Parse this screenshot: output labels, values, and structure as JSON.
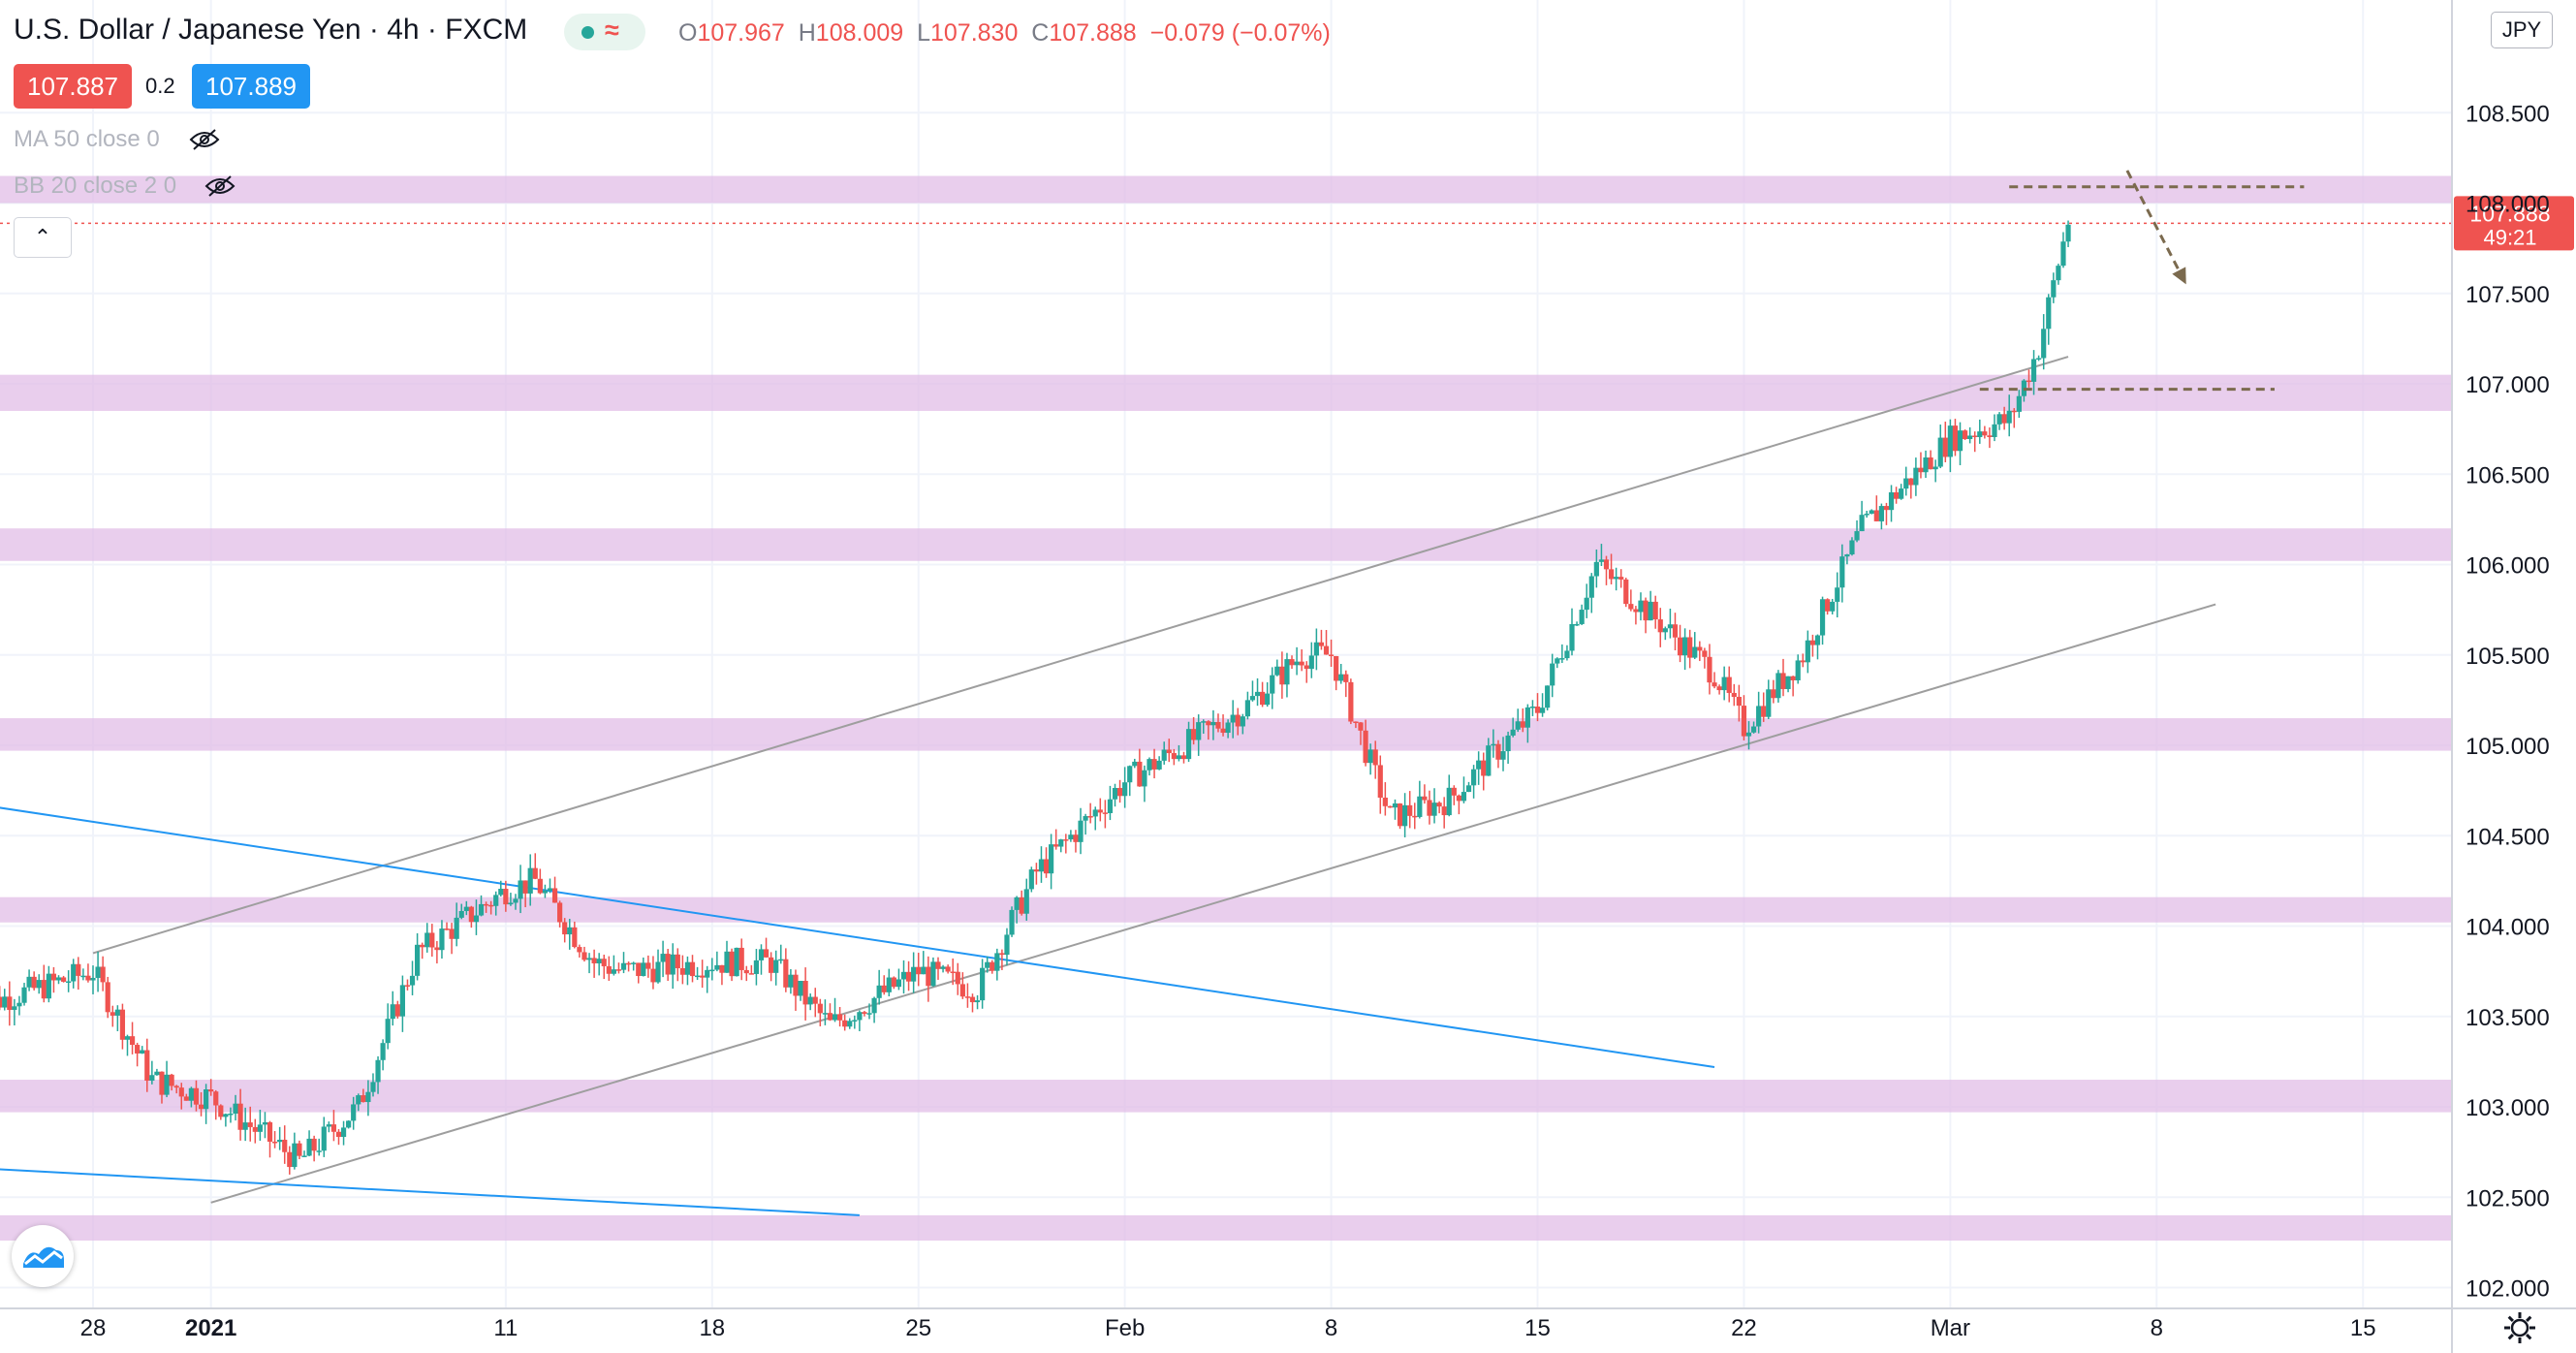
{
  "header": {
    "title": "U.S. Dollar / Japanese Yen · 4h · FXCM",
    "ohlc": {
      "o_label": "O",
      "o": "107.967",
      "h_label": "H",
      "h": "108.009",
      "l_label": "L",
      "l": "107.830",
      "c_label": "C",
      "c": "107.888",
      "change": "−0.079 (−0.07%)"
    },
    "sell_price": "107.887",
    "buy_price": "107.889",
    "spread": "0.2",
    "indicators": [
      "MA 50 close 0",
      "BB 20 close 2 0"
    ],
    "currency_button": "JPY"
  },
  "colors": {
    "up": "#26a69a",
    "down": "#ef5350",
    "zone": "#e1bee7",
    "channel": "#9e9e9e",
    "wedge": "#2196f3",
    "projection": "#7b6a4e",
    "last_price": "#ef5350",
    "buy": "#2196f3"
  },
  "icons": [
    "eye-off-icon",
    "chevron-up-icon",
    "tradingview-logo-icon",
    "gear-icon",
    "wave-icon",
    "status-dot-icon"
  ],
  "chart_data": {
    "type": "candlestick",
    "ylim": [
      102.0,
      108.5
    ],
    "y_ticks": [
      "102.000",
      "102.500",
      "103.000",
      "103.500",
      "104.000",
      "104.500",
      "105.000",
      "105.500",
      "106.000",
      "106.500",
      "107.000",
      "107.500",
      "108.000",
      "108.500"
    ],
    "x_ticks": [
      {
        "label": "28",
        "date": "2020-12-28"
      },
      {
        "label": "2021",
        "date": "2021-01-01"
      },
      {
        "label": "11",
        "date": "2021-01-11"
      },
      {
        "label": "18",
        "date": "2021-01-18"
      },
      {
        "label": "25",
        "date": "2021-01-25"
      },
      {
        "label": "Feb",
        "date": "2021-02-01"
      },
      {
        "label": "8",
        "date": "2021-02-08"
      },
      {
        "label": "15",
        "date": "2021-02-15"
      },
      {
        "label": "22",
        "date": "2021-02-22"
      },
      {
        "label": "Mar",
        "date": "2021-03-01"
      },
      {
        "label": "8",
        "date": "2021-03-08"
      },
      {
        "label": "15",
        "date": "2021-03-15"
      }
    ],
    "last_price": {
      "value": "107.888",
      "countdown": "49:21"
    },
    "price_path": [
      {
        "date": "2020-12-24",
        "close": 103.55
      },
      {
        "date": "2020-12-28",
        "close": 103.75
      },
      {
        "date": "2020-12-30",
        "close": 103.15
      },
      {
        "date": "2021-01-01",
        "close": 103.05
      },
      {
        "date": "2021-01-04",
        "close": 102.7
      },
      {
        "date": "2021-01-06",
        "close": 103.0
      },
      {
        "date": "2021-01-08",
        "close": 103.85
      },
      {
        "date": "2021-01-11",
        "close": 104.2
      },
      {
        "date": "2021-01-12",
        "close": 104.25
      },
      {
        "date": "2021-01-14",
        "close": 103.8
      },
      {
        "date": "2021-01-15",
        "close": 103.75
      },
      {
        "date": "2021-01-18",
        "close": 103.8
      },
      {
        "date": "2021-01-20",
        "close": 103.8
      },
      {
        "date": "2021-01-22",
        "close": 103.45
      },
      {
        "date": "2021-01-25",
        "close": 103.75
      },
      {
        "date": "2021-01-27",
        "close": 103.65
      },
      {
        "date": "2021-01-29",
        "close": 104.3
      },
      {
        "date": "2021-02-01",
        "close": 104.8
      },
      {
        "date": "2021-02-03",
        "close": 105.0
      },
      {
        "date": "2021-02-05",
        "close": 105.2
      },
      {
        "date": "2021-02-07",
        "close": 105.5
      },
      {
        "date": "2021-02-08",
        "close": 105.5
      },
      {
        "date": "2021-02-10",
        "close": 104.6
      },
      {
        "date": "2021-02-12",
        "close": 104.7
      },
      {
        "date": "2021-02-15",
        "close": 105.2
      },
      {
        "date": "2021-02-17",
        "close": 106.0
      },
      {
        "date": "2021-02-19",
        "close": 105.7
      },
      {
        "date": "2021-02-21",
        "close": 105.4
      },
      {
        "date": "2021-02-22",
        "close": 105.1
      },
      {
        "date": "2021-02-24",
        "close": 105.5
      },
      {
        "date": "2021-02-26",
        "close": 106.2
      },
      {
        "date": "2021-03-01",
        "close": 106.7
      },
      {
        "date": "2021-03-03",
        "close": 106.8
      },
      {
        "date": "2021-03-04",
        "close": 107.2
      },
      {
        "date": "2021-03-05",
        "close": 107.9
      }
    ],
    "zones": [
      [
        108.0,
        108.15
      ],
      [
        106.85,
        107.05
      ],
      [
        106.02,
        106.2
      ],
      [
        104.97,
        105.15
      ],
      [
        104.02,
        104.16
      ],
      [
        102.97,
        103.15
      ],
      [
        102.26,
        102.4
      ]
    ],
    "channel_lines": [
      {
        "from": {
          "date": "2020-12-28",
          "price": 103.85
        },
        "to": {
          "date": "2021-03-05",
          "price": 107.15
        }
      },
      {
        "from": {
          "date": "2021-01-01",
          "price": 102.47
        },
        "to": {
          "date": "2021-03-10",
          "price": 105.78
        }
      }
    ],
    "wedge_lines": [
      {
        "from": {
          "date": "2020-12-23",
          "price": 104.7
        },
        "to": {
          "date": "2021-02-21",
          "price": 103.22
        }
      },
      {
        "from": {
          "date": "2020-12-23",
          "price": 102.67
        },
        "to": {
          "date": "2021-01-23",
          "price": 102.4
        }
      }
    ],
    "dashed_levels": [
      {
        "price": 108.09,
        "from": "2021-03-03",
        "to": "2021-03-13"
      },
      {
        "price": 106.97,
        "from": "2021-03-02",
        "to": "2021-03-12"
      }
    ],
    "projection_arrow": {
      "from": {
        "date": "2021-03-07",
        "price": 108.18
      },
      "to": {
        "date": "2021-03-09",
        "price": 107.55
      }
    }
  }
}
